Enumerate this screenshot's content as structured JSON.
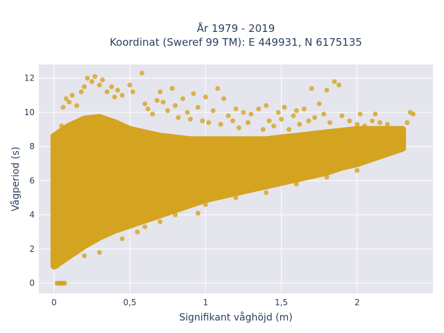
{
  "chart_data": {
    "type": "scatter",
    "title_line1": "År 1979 - 2019",
    "title_line2": "Koordinat (Sweref 99 TM): E 449931, N 6175135",
    "xlabel": "Signifikant våghöjd (m)",
    "ylabel": "Vågperiod (s)",
    "xlim": [
      -0.1,
      2.5
    ],
    "ylim": [
      -0.6,
      12.8
    ],
    "x_ticks": [
      0,
      0.5,
      1,
      1.5,
      2
    ],
    "x_tick_labels": [
      "0",
      "0,5",
      "1",
      "1,5",
      "2"
    ],
    "y_ticks": [
      0,
      2,
      4,
      6,
      8,
      10,
      12
    ],
    "y_tick_labels": [
      "0",
      "2",
      "4",
      "6",
      "8",
      "10",
      "12"
    ],
    "grid": true,
    "marker_color": "#d4a420",
    "plot_background": "#e5e5ee",
    "density_band": {
      "x": [
        0.0,
        0.1,
        0.2,
        0.3,
        0.4,
        0.5,
        0.6,
        0.7,
        0.8,
        0.9,
        1.0,
        1.1,
        1.2,
        1.3,
        1.4,
        1.5,
        1.6,
        1.7,
        1.8,
        1.9,
        2.0,
        2.1,
        2.2,
        2.3
      ],
      "y_low": [
        1.0,
        1.6,
        2.2,
        2.7,
        3.1,
        3.4,
        3.7,
        4.0,
        4.3,
        4.6,
        4.9,
        5.1,
        5.3,
        5.5,
        5.7,
        5.9,
        6.1,
        6.3,
        6.5,
        6.8,
        7.0,
        7.3,
        7.6,
        7.9
      ],
      "y_high": [
        8.6,
        9.2,
        9.6,
        9.7,
        9.4,
        9.0,
        8.8,
        8.6,
        8.5,
        8.4,
        8.4,
        8.4,
        8.4,
        8.4,
        8.4,
        8.5,
        8.6,
        8.7,
        8.8,
        8.9,
        9.0,
        9.0,
        9.0,
        9.0
      ]
    },
    "points": [
      [
        0.02,
        0.0
      ],
      [
        0.03,
        0.0
      ],
      [
        0.04,
        0.0
      ],
      [
        0.05,
        0.0
      ],
      [
        0.06,
        0.0
      ],
      [
        0.07,
        0.0
      ],
      [
        0.01,
        1.1
      ],
      [
        0.02,
        1.0
      ],
      [
        0.03,
        1.2
      ],
      [
        0.05,
        9.2
      ],
      [
        0.06,
        10.3
      ],
      [
        0.08,
        10.8
      ],
      [
        0.1,
        10.6
      ],
      [
        0.12,
        11.0
      ],
      [
        0.15,
        10.4
      ],
      [
        0.18,
        11.2
      ],
      [
        0.2,
        11.5
      ],
      [
        0.22,
        12.0
      ],
      [
        0.25,
        11.8
      ],
      [
        0.27,
        12.1
      ],
      [
        0.3,
        11.6
      ],
      [
        0.32,
        11.9
      ],
      [
        0.35,
        11.2
      ],
      [
        0.38,
        11.5
      ],
      [
        0.4,
        10.9
      ],
      [
        0.42,
        11.3
      ],
      [
        0.45,
        11.0
      ],
      [
        0.5,
        11.6
      ],
      [
        0.52,
        11.2
      ],
      [
        0.58,
        12.3
      ],
      [
        0.6,
        10.5
      ],
      [
        0.62,
        10.2
      ],
      [
        0.65,
        9.9
      ],
      [
        0.68,
        10.7
      ],
      [
        0.7,
        11.2
      ],
      [
        0.72,
        10.6
      ],
      [
        0.75,
        10.1
      ],
      [
        0.78,
        11.4
      ],
      [
        0.8,
        10.4
      ],
      [
        0.82,
        9.7
      ],
      [
        0.85,
        10.8
      ],
      [
        0.88,
        10.0
      ],
      [
        0.9,
        9.6
      ],
      [
        0.92,
        11.1
      ],
      [
        0.95,
        10.3
      ],
      [
        0.98,
        9.5
      ],
      [
        1.0,
        10.9
      ],
      [
        1.02,
        9.4
      ],
      [
        1.05,
        10.1
      ],
      [
        1.08,
        11.4
      ],
      [
        1.1,
        9.3
      ],
      [
        1.12,
        10.8
      ],
      [
        1.15,
        9.8
      ],
      [
        1.18,
        9.5
      ],
      [
        1.2,
        10.2
      ],
      [
        1.22,
        9.1
      ],
      [
        1.25,
        10.0
      ],
      [
        1.28,
        9.4
      ],
      [
        1.3,
        9.9
      ],
      [
        1.35,
        10.2
      ],
      [
        1.38,
        9.0
      ],
      [
        1.4,
        10.4
      ],
      [
        1.42,
        9.5
      ],
      [
        1.45,
        9.2
      ],
      [
        1.48,
        10.0
      ],
      [
        1.5,
        9.6
      ],
      [
        1.52,
        10.3
      ],
      [
        1.55,
        9.0
      ],
      [
        1.58,
        9.8
      ],
      [
        1.6,
        10.1
      ],
      [
        1.62,
        9.3
      ],
      [
        1.65,
        10.2
      ],
      [
        1.68,
        9.5
      ],
      [
        1.7,
        11.4
      ],
      [
        1.72,
        9.7
      ],
      [
        1.75,
        10.5
      ],
      [
        1.78,
        9.9
      ],
      [
        1.8,
        11.3
      ],
      [
        1.82,
        9.4
      ],
      [
        1.85,
        11.8
      ],
      [
        1.88,
        11.6
      ],
      [
        1.9,
        9.8
      ],
      [
        1.95,
        9.5
      ],
      [
        2.0,
        9.3
      ],
      [
        2.02,
        9.9
      ],
      [
        2.05,
        9.2
      ],
      [
        2.1,
        9.5
      ],
      [
        2.12,
        9.9
      ],
      [
        2.15,
        9.4
      ],
      [
        2.2,
        9.3
      ],
      [
        2.22,
        9.0
      ],
      [
        2.25,
        8.9
      ],
      [
        2.28,
        8.8
      ],
      [
        2.3,
        8.9
      ],
      [
        2.33,
        9.4
      ],
      [
        2.35,
        10.0
      ],
      [
        2.37,
        9.9
      ],
      [
        0.3,
        1.8
      ],
      [
        0.2,
        1.6
      ],
      [
        0.45,
        2.6
      ],
      [
        0.6,
        3.3
      ],
      [
        0.8,
        4.0
      ],
      [
        1.0,
        4.6
      ],
      [
        1.2,
        5.0
      ],
      [
        1.4,
        5.3
      ],
      [
        1.6,
        5.8
      ],
      [
        1.8,
        6.2
      ],
      [
        2.0,
        6.6
      ],
      [
        0.95,
        4.1
      ],
      [
        0.7,
        3.6
      ],
      [
        0.55,
        3.0
      ]
    ]
  }
}
